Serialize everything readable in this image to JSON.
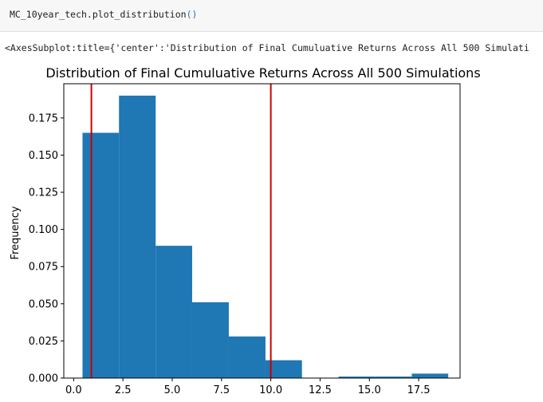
{
  "cell": {
    "code_prefix": "MC_10year_tech.plot_distribution",
    "code_parens": "()"
  },
  "output": {
    "repr_text": "<AxesSubplot:title={'center':'Distribution of Final Cumuluative Returns Across All 500 Simulati"
  },
  "colors": {
    "bar": "#1f77b4",
    "confidence_line": "#cc0000",
    "cell_background": "#f7f7f7"
  },
  "chart_data": {
    "type": "bar",
    "title": "Distribution of Final Cumuluative Returns Across All 500 Simulations",
    "xlabel": "",
    "ylabel": "Frequency",
    "xlim": [
      -0.5,
      19.6
    ],
    "ylim": [
      0,
      0.198
    ],
    "x_ticks": [
      0.0,
      2.5,
      5.0,
      7.5,
      10.0,
      12.5,
      15.0,
      17.5
    ],
    "x_tick_labels": [
      "0.0",
      "2.5",
      "5.0",
      "7.5",
      "10.0",
      "12.5",
      "15.0",
      "17.5"
    ],
    "y_ticks": [
      0.0,
      0.025,
      0.05,
      0.075,
      0.1,
      0.125,
      0.15,
      0.175
    ],
    "y_tick_labels": [
      "0.000",
      "0.025",
      "0.050",
      "0.075",
      "0.100",
      "0.125",
      "0.150",
      "0.175"
    ],
    "grid": false,
    "bins": [
      {
        "start": 0.45,
        "end": 2.3,
        "value": 0.165
      },
      {
        "start": 2.3,
        "end": 4.16,
        "value": 0.19
      },
      {
        "start": 4.16,
        "end": 6.01,
        "value": 0.089
      },
      {
        "start": 6.01,
        "end": 7.87,
        "value": 0.051
      },
      {
        "start": 7.87,
        "end": 9.73,
        "value": 0.028
      },
      {
        "start": 9.73,
        "end": 11.58,
        "value": 0.012
      },
      {
        "start": 11.58,
        "end": 13.44,
        "value": 0.0
      },
      {
        "start": 13.44,
        "end": 15.3,
        "value": 0.001
      },
      {
        "start": 15.3,
        "end": 17.15,
        "value": 0.001
      },
      {
        "start": 17.15,
        "end": 19.0,
        "value": 0.003
      }
    ],
    "vertical_lines": [
      0.9,
      10.0
    ]
  }
}
